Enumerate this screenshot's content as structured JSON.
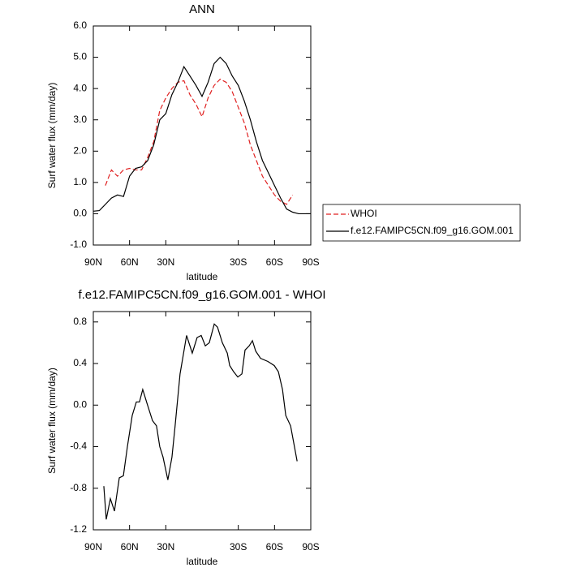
{
  "chart_data": [
    {
      "type": "line",
      "title": "ANN",
      "x_label": "latitude",
      "y_label": "Surf water flux (mm/day)",
      "x": [
        90,
        85,
        80,
        75,
        70,
        65,
        60,
        55,
        50,
        45,
        40,
        35,
        30,
        25,
        20,
        15,
        10,
        5,
        0,
        -5,
        -10,
        -15,
        -20,
        -25,
        -30,
        -35,
        -40,
        -45,
        -50,
        -55,
        -60,
        -65,
        -70,
        -75,
        -80,
        -85,
        -90
      ],
      "series": [
        {
          "name": "WHOI",
          "color": "#e02020",
          "style": "dashed",
          "values": [
            null,
            null,
            0.9,
            1.4,
            1.2,
            1.4,
            1.45,
            1.4,
            1.4,
            1.8,
            2.3,
            3.3,
            3.7,
            4.0,
            4.2,
            4.25,
            3.8,
            3.5,
            3.1,
            3.7,
            4.1,
            4.3,
            4.2,
            3.9,
            3.4,
            2.9,
            2.2,
            1.7,
            1.2,
            0.9,
            0.6,
            0.4,
            0.3,
            0.6,
            null,
            null,
            null
          ]
        },
        {
          "name": "f.e12.FAMIPC5CN.f09_g16.GOM.001",
          "color": "#000000",
          "style": "solid",
          "values": [
            0.08,
            0.1,
            0.3,
            0.5,
            0.6,
            0.55,
            1.2,
            1.45,
            1.5,
            1.7,
            2.2,
            3.0,
            3.2,
            3.8,
            4.2,
            4.7,
            4.4,
            4.1,
            3.75,
            4.2,
            4.8,
            5.0,
            4.8,
            4.4,
            4.1,
            3.6,
            3.0,
            2.3,
            1.7,
            1.3,
            0.9,
            0.5,
            0.15,
            0.05,
            0.0,
            0.0,
            0.0
          ]
        }
      ],
      "xlim": [
        90,
        -90
      ],
      "xticks": [
        {
          "value": 90,
          "label": "90N"
        },
        {
          "value": 60,
          "label": "60N"
        },
        {
          "value": 30,
          "label": "30N"
        },
        {
          "value": -30,
          "label": "30S"
        },
        {
          "value": -60,
          "label": "60S"
        },
        {
          "value": -90,
          "label": "90S"
        }
      ],
      "ylim": [
        -1,
        6
      ],
      "yticks": [
        {
          "value": -1,
          "label": "-1.0"
        },
        {
          "value": 0,
          "label": "0.0"
        },
        {
          "value": 1,
          "label": "1.0"
        },
        {
          "value": 2,
          "label": "2.0"
        },
        {
          "value": 3,
          "label": "3.0"
        },
        {
          "value": 4,
          "label": "4.0"
        },
        {
          "value": 5,
          "label": "5.0"
        },
        {
          "value": 6,
          "label": "6.0"
        }
      ],
      "legend": "right"
    },
    {
      "type": "line",
      "title": "f.e12.FAMIPC5CN.f09_g16.GOM.001 - WHOI",
      "x_label": "latitude",
      "y_label": "Surf water flux (mm/day)",
      "x": [
        81.3,
        79.3,
        75.9,
        72.5,
        68.5,
        65.1,
        61.8,
        57.8,
        54.4,
        51.8,
        49.1,
        45.1,
        41.0,
        37.7,
        35.0,
        32.3,
        28.3,
        24.9,
        22.3,
        18.2,
        12.8,
        8.1,
        4.1,
        0.7,
        -2.7,
        -6.0,
        -10.1,
        -12.8,
        -16.8,
        -20.9,
        -22.9,
        -26.2,
        -29.6,
        -33.0,
        -35.6,
        -39.0,
        -41.7,
        -44.4,
        -48.4,
        -54.5,
        -59.8,
        -63.2,
        -66.6,
        -69.3,
        -73.3,
        -78.7
      ],
      "series": [
        {
          "color": "#000000",
          "style": "solid",
          "values": [
            -0.78,
            -1.1,
            -0.9,
            -1.02,
            -0.7,
            -0.68,
            -0.4,
            -0.1,
            0.03,
            0.03,
            0.15,
            0.0,
            -0.15,
            -0.2,
            -0.4,
            -0.5,
            -0.72,
            -0.5,
            -0.2,
            0.3,
            0.67,
            0.5,
            0.65,
            0.67,
            0.57,
            0.6,
            0.78,
            0.75,
            0.6,
            0.5,
            0.38,
            0.32,
            0.27,
            0.3,
            0.53,
            0.57,
            0.62,
            0.52,
            0.45,
            0.42,
            0.38,
            0.32,
            0.15,
            -0.1,
            -0.2,
            -0.54
          ]
        }
      ],
      "xlim": [
        90,
        -90
      ],
      "xticks": [
        {
          "value": 90,
          "label": "90N"
        },
        {
          "value": 60,
          "label": "60N"
        },
        {
          "value": 30,
          "label": "30N"
        },
        {
          "value": -30,
          "label": "30S"
        },
        {
          "value": -60,
          "label": "60S"
        },
        {
          "value": -90,
          "label": "90S"
        }
      ],
      "ylim": [
        -1.2,
        0.9
      ],
      "yticks": [
        -1.2,
        -0.8,
        -0.4,
        {
          "value": 0,
          "label": "0.0"
        },
        0.4,
        0.8
      ]
    }
  ]
}
